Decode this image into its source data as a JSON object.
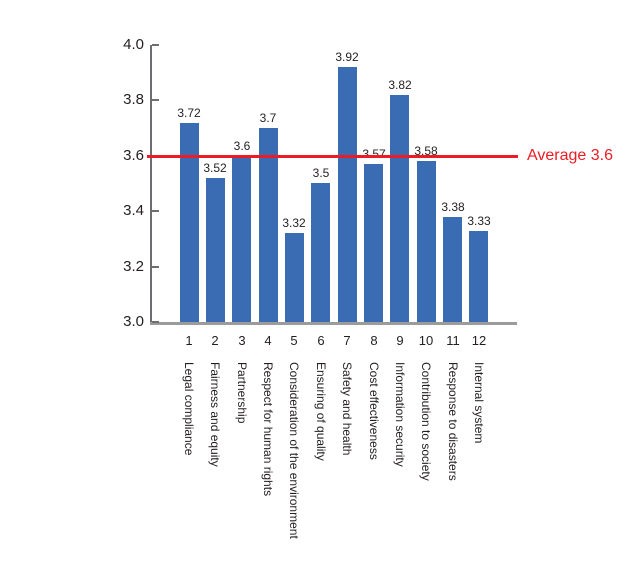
{
  "chart_data": {
    "type": "bar",
    "title": "",
    "categories": [
      "Legal compliance",
      "Fairness and equity",
      "Partnership",
      "Respect for human rights",
      "Consideration of the environment",
      "Ensuring of quality",
      "Safety and health",
      "Cost effectiveness",
      "Information security",
      "Contribution to society",
      "Response to disasters",
      "Internal system"
    ],
    "x_tick_numbers": [
      "1",
      "2",
      "3",
      "4",
      "5",
      "6",
      "7",
      "8",
      "9",
      "10",
      "11",
      "12"
    ],
    "values": [
      3.72,
      3.52,
      3.6,
      3.7,
      3.32,
      3.5,
      3.92,
      3.57,
      3.82,
      3.58,
      3.38,
      3.33
    ],
    "value_labels": [
      "3.72",
      "3.52",
      "3.6",
      "3.7",
      "3.32",
      "3.5",
      "3.92",
      "3.57",
      "3.82",
      "3.58",
      "3.38",
      "3.33"
    ],
    "ylim": [
      3.0,
      4.0
    ],
    "yticks": [
      4.0,
      3.8,
      3.6,
      3.4,
      3.2,
      3.0
    ],
    "ytick_labels": [
      "4.0",
      "3.8",
      "3.6",
      "3.4",
      "3.2",
      "3.0"
    ],
    "grid": false,
    "legend": "none",
    "average": 3.6,
    "average_label": "Average 3.6",
    "colors": {
      "bar": "#3a6cb4",
      "average_line": "#ed1c24",
      "y_axis": "#6d6e71",
      "x_axis": "#9b9b9b",
      "text": "#231f20"
    }
  }
}
